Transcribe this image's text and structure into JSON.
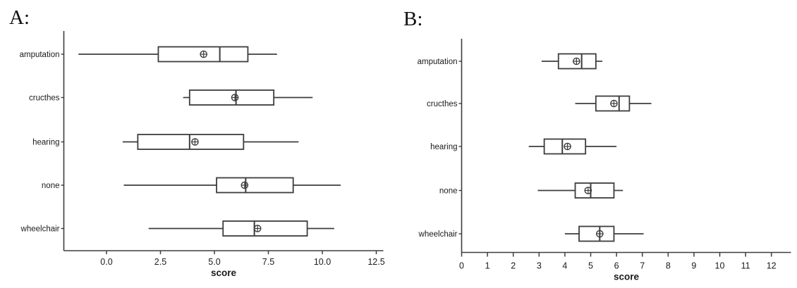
{
  "figure": {
    "background": "#ffffff",
    "panel_count": 2
  },
  "chart_data": [
    {
      "type": "boxplot",
      "panel_label": "A:",
      "orientation": "horizontal",
      "title": "",
      "xlabel": "score",
      "categories": [
        "amputation",
        "cructhes",
        "hearing",
        "none",
        "wheelchair"
      ],
      "xlim": [
        -2.0,
        12.85
      ],
      "grid": false,
      "xticks": {
        "values": [
          0,
          2.5,
          5,
          7.5,
          10,
          12.5
        ],
        "labels": [
          "0.0",
          "2.5",
          "5.0",
          "7.5",
          "10.0",
          "12.5"
        ]
      },
      "mean_marker": "circled-plus",
      "colors": {
        "line": "#3d3d3d",
        "box_fill": "#ffffff",
        "text": "#1a1a1a"
      },
      "series": [
        {
          "category": "amputation",
          "whisker_low": -1.3,
          "q1": 2.4,
          "median": 5.25,
          "q3": 6.55,
          "whisker_high": 7.9,
          "mean": 4.5
        },
        {
          "category": "cructhes",
          "whisker_low": 3.55,
          "q1": 3.85,
          "median": 6.0,
          "q3": 7.75,
          "whisker_high": 9.55,
          "mean": 5.95
        },
        {
          "category": "hearing",
          "whisker_low": 0.75,
          "q1": 1.45,
          "median": 3.85,
          "q3": 6.35,
          "whisker_high": 8.9,
          "mean": 4.1
        },
        {
          "category": "none",
          "whisker_low": 0.8,
          "q1": 5.1,
          "median": 6.45,
          "q3": 8.65,
          "whisker_high": 10.85,
          "mean": 6.4
        },
        {
          "category": "wheelchair",
          "whisker_low": 1.95,
          "q1": 5.4,
          "median": 6.85,
          "q3": 9.3,
          "whisker_high": 10.55,
          "mean": 7.0
        }
      ]
    },
    {
      "type": "boxplot",
      "panel_label": "B:",
      "orientation": "horizontal",
      "title": "",
      "xlabel": "score",
      "categories": [
        "amputation",
        "cructhes",
        "hearing",
        "none",
        "wheelchair"
      ],
      "xlim": [
        0,
        12.76
      ],
      "grid": false,
      "xticks": {
        "values": [
          0,
          1,
          2,
          3,
          4,
          5,
          6,
          7,
          8,
          9,
          10,
          11,
          12
        ],
        "labels": [
          "0",
          "1",
          "2",
          "3",
          "4",
          "5",
          "6",
          "7",
          "8",
          "9",
          "10",
          "11",
          "12"
        ]
      },
      "mean_marker": "circled-plus",
      "colors": {
        "line": "#3d3d3d",
        "box_fill": "#ffffff",
        "text": "#1a1a1a"
      },
      "series": [
        {
          "category": "amputation",
          "whisker_low": 3.1,
          "q1": 3.75,
          "median": 4.65,
          "q3": 5.2,
          "whisker_high": 5.45,
          "mean": 4.45
        },
        {
          "category": "cructhes",
          "whisker_low": 4.4,
          "q1": 5.2,
          "median": 6.1,
          "q3": 6.5,
          "whisker_high": 7.35,
          "mean": 5.9
        },
        {
          "category": "hearing",
          "whisker_low": 2.6,
          "q1": 3.2,
          "median": 3.9,
          "q3": 4.8,
          "whisker_high": 6.0,
          "mean": 4.1
        },
        {
          "category": "none",
          "whisker_low": 2.95,
          "q1": 4.4,
          "median": 5.0,
          "q3": 5.9,
          "whisker_high": 6.25,
          "mean": 4.9
        },
        {
          "category": "wheelchair",
          "whisker_low": 4.0,
          "q1": 4.55,
          "median": 5.35,
          "q3": 5.9,
          "whisker_high": 7.05,
          "mean": 5.35
        }
      ]
    }
  ]
}
